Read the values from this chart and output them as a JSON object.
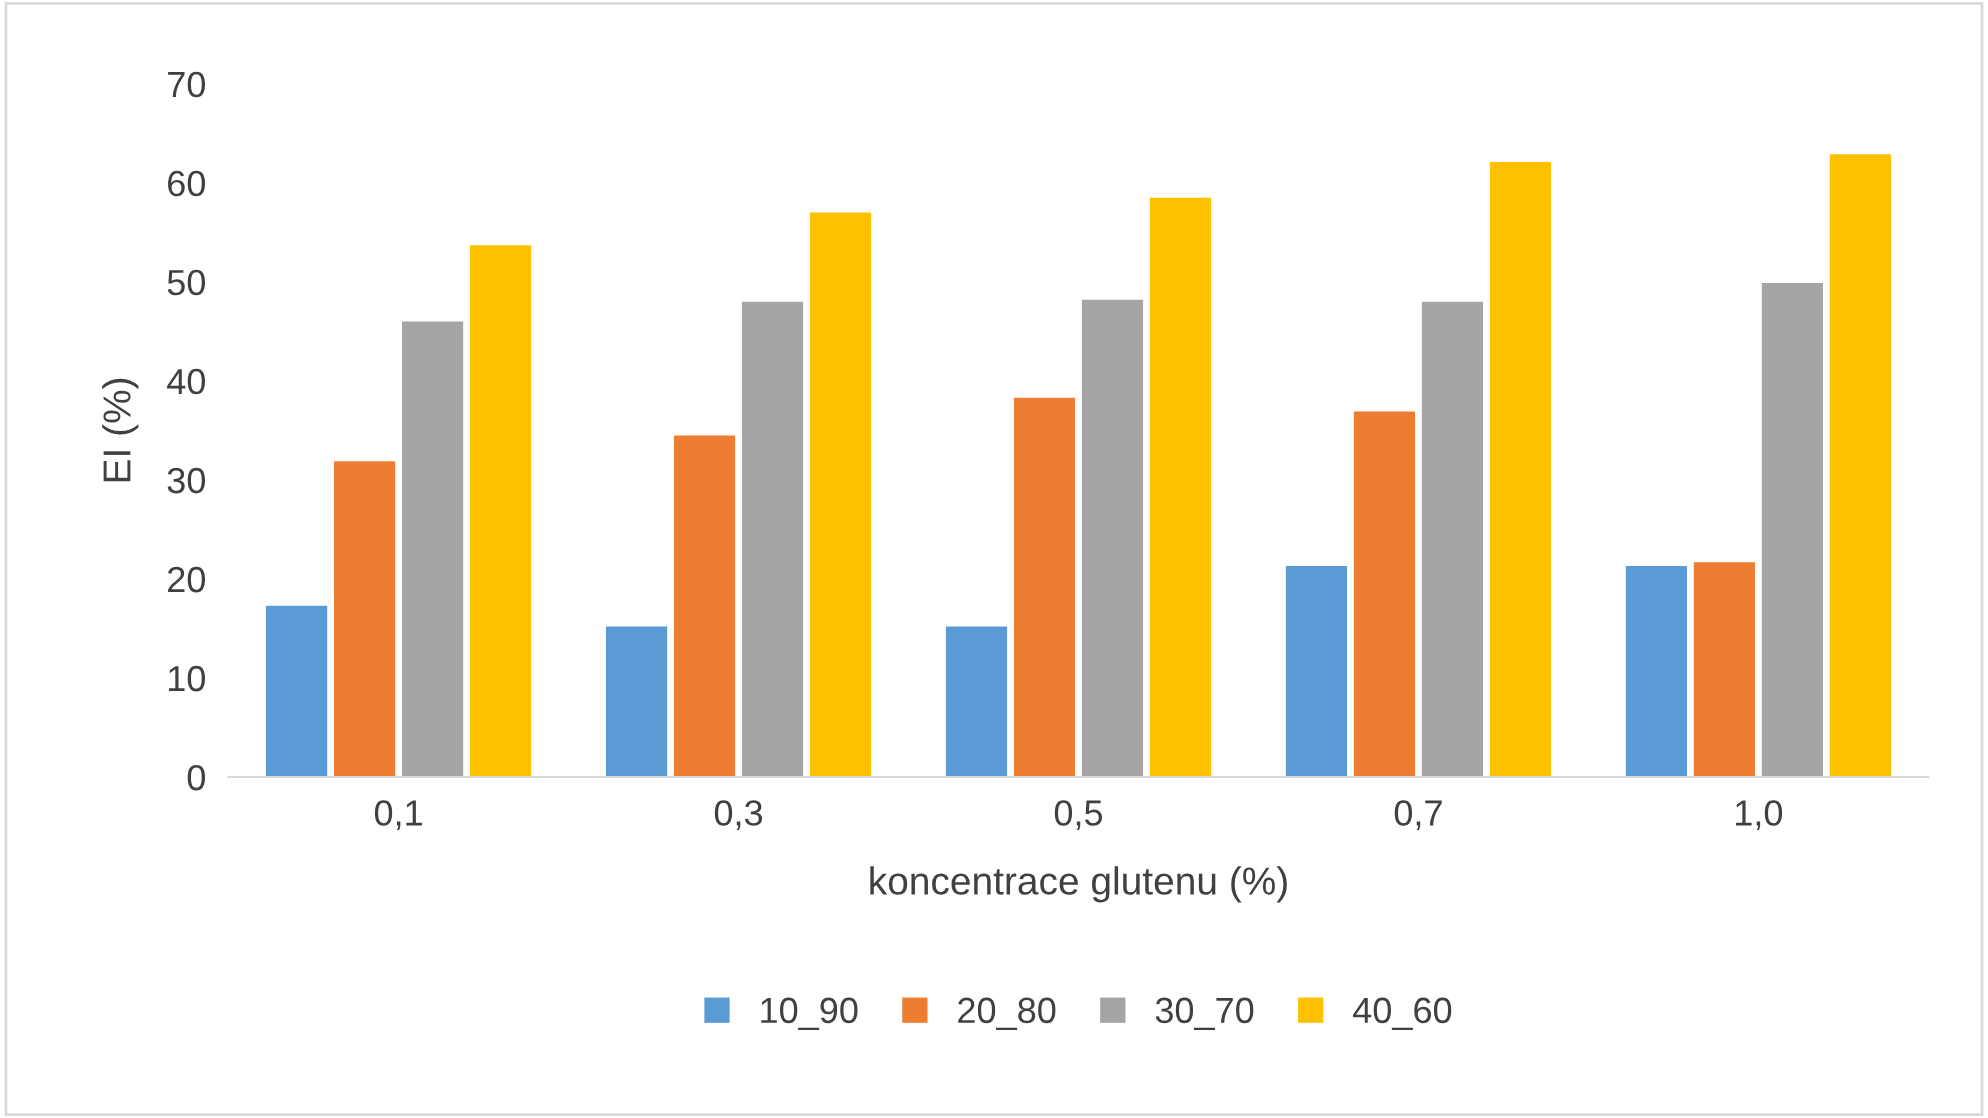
{
  "chart_data": {
    "type": "bar",
    "xlabel": "koncentrace glutenu (%)",
    "ylabel": "EI (%)",
    "categories": [
      "0,1",
      "0,3",
      "0,5",
      "0,7",
      "1,0"
    ],
    "series": [
      {
        "name": "10_90",
        "color": "#5b9bd5",
        "values": [
          17.3,
          15.2,
          15.2,
          21.3,
          21.3
        ]
      },
      {
        "name": "20_80",
        "color": "#ed7d31",
        "values": [
          31.9,
          34.5,
          38.3,
          36.9,
          21.7
        ]
      },
      {
        "name": "30_70",
        "color": "#a5a5a5",
        "values": [
          46.0,
          48.0,
          48.2,
          48.0,
          49.9
        ]
      },
      {
        "name": "40_60",
        "color": "#ffc000",
        "values": [
          53.7,
          57.0,
          58.5,
          62.1,
          62.9
        ]
      }
    ],
    "ylim": [
      0,
      70
    ],
    "yticks": [
      0,
      10,
      20,
      30,
      40,
      50,
      60,
      70
    ],
    "grid": false,
    "legend": "bottom"
  }
}
